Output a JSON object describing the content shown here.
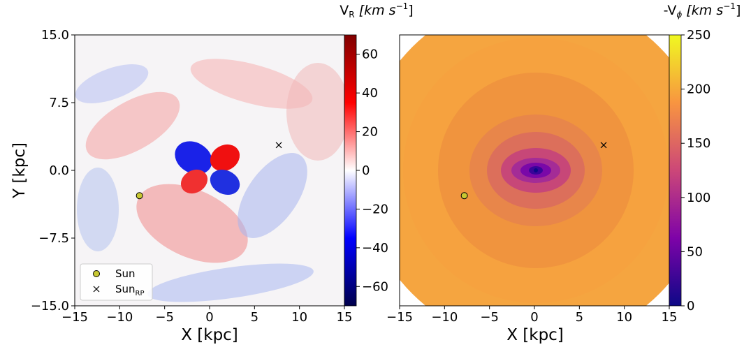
{
  "chart_data": [
    {
      "type": "heatmap",
      "title": "V_R [km s^-1]",
      "title_parts": {
        "main": "V",
        "sub": "R",
        "unit": "[km s",
        "exp": "−1",
        "close": "]"
      },
      "xlabel": "X [kpc]",
      "ylabel": "Y [kpc]",
      "xlim": [
        -15,
        15
      ],
      "ylim": [
        -15,
        15
      ],
      "xticks": [
        -15,
        -10,
        -5,
        0,
        5,
        10,
        15
      ],
      "xtick_labels": [
        "−15",
        "−10",
        "−5",
        "0",
        "5",
        "10",
        "15"
      ],
      "yticks": [
        15,
        7.5,
        0,
        -7.5,
        -15
      ],
      "ytick_labels": [
        "15.0",
        "7.5",
        "0.0",
        "−7.5",
        "−15.0"
      ],
      "colormap": "seismic",
      "color_range": [
        -70,
        70
      ],
      "colorbar_ticks": [
        60,
        40,
        20,
        0,
        -20,
        -40,
        -60
      ],
      "colorbar_tick_labels": [
        "60",
        "40",
        "20",
        "0",
        "−20",
        "−40",
        "−60"
      ],
      "markers": [
        {
          "name": "Sun",
          "x": -7.8,
          "y": -2.8,
          "symbol": "circle",
          "color": "#c8c832"
        },
        {
          "name": "Sun_RP",
          "x": 7.7,
          "y": 2.8,
          "symbol": "x",
          "color": "#000000"
        }
      ],
      "legend": {
        "position": "lower-left",
        "entries": [
          "Sun",
          "Sun_RP"
        ],
        "labels": [
          {
            "main": "Sun"
          },
          {
            "main": "Sun",
            "sub": "RP"
          }
        ]
      }
    },
    {
      "type": "heatmap",
      "title": "-V_phi [km s^-1]",
      "title_parts": {
        "main": "-V",
        "sub": "ϕ",
        "unit": "[km s",
        "exp": "−1",
        "close": "]"
      },
      "xlabel": "X [kpc]",
      "xlim": [
        -15,
        15
      ],
      "ylim": [
        -15,
        15
      ],
      "xticks": [
        -15,
        -10,
        -5,
        0,
        5,
        10,
        15
      ],
      "xtick_labels": [
        "−15",
        "−10",
        "−5",
        "0",
        "5",
        "10",
        "15"
      ],
      "colormap": "plasma",
      "color_range": [
        0,
        250
      ],
      "colorbar_ticks": [
        250,
        200,
        150,
        100,
        50,
        0
      ],
      "colorbar_tick_labels": [
        "250",
        "200",
        "150",
        "100",
        "50",
        "0"
      ],
      "markers": [
        {
          "name": "Sun",
          "x": -7.8,
          "y": -2.8,
          "symbol": "circle",
          "color": "#c8c832"
        },
        {
          "name": "Sun_RP",
          "x": 7.7,
          "y": 2.8,
          "symbol": "x",
          "color": "#000000"
        }
      ]
    }
  ]
}
